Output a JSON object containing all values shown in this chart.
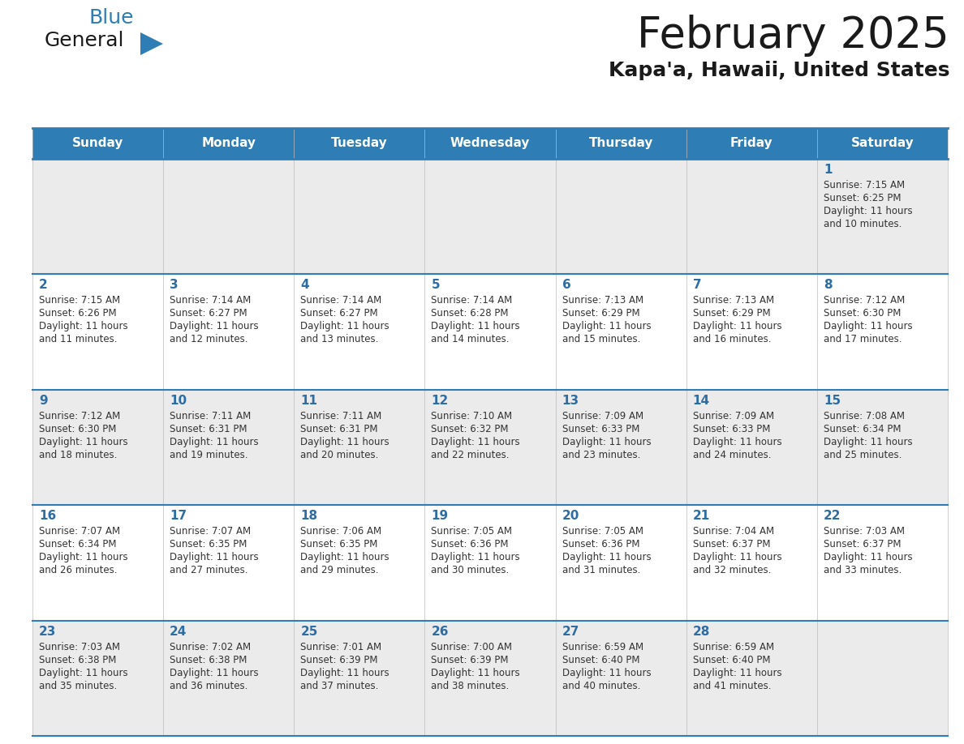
{
  "title": "February 2025",
  "subtitle": "Kapa'a, Hawaii, United States",
  "header_bg": "#2E7DB5",
  "header_text": "#FFFFFF",
  "cell_bg_light": "#EBEBEB",
  "cell_bg_white": "#FFFFFF",
  "day_text_color": "#2E6DA4",
  "info_text_color": "#333333",
  "border_color": "#2E7DB5",
  "weekdays": [
    "Sunday",
    "Monday",
    "Tuesday",
    "Wednesday",
    "Thursday",
    "Friday",
    "Saturday"
  ],
  "days_data": [
    {
      "day": 1,
      "col": 6,
      "row": 0,
      "sunrise": "7:15 AM",
      "sunset": "6:25 PM",
      "daylight_h": "11 hours",
      "daylight_m": "10 minutes"
    },
    {
      "day": 2,
      "col": 0,
      "row": 1,
      "sunrise": "7:15 AM",
      "sunset": "6:26 PM",
      "daylight_h": "11 hours",
      "daylight_m": "11 minutes"
    },
    {
      "day": 3,
      "col": 1,
      "row": 1,
      "sunrise": "7:14 AM",
      "sunset": "6:27 PM",
      "daylight_h": "11 hours",
      "daylight_m": "12 minutes"
    },
    {
      "day": 4,
      "col": 2,
      "row": 1,
      "sunrise": "7:14 AM",
      "sunset": "6:27 PM",
      "daylight_h": "11 hours",
      "daylight_m": "13 minutes"
    },
    {
      "day": 5,
      "col": 3,
      "row": 1,
      "sunrise": "7:14 AM",
      "sunset": "6:28 PM",
      "daylight_h": "11 hours",
      "daylight_m": "14 minutes"
    },
    {
      "day": 6,
      "col": 4,
      "row": 1,
      "sunrise": "7:13 AM",
      "sunset": "6:29 PM",
      "daylight_h": "11 hours",
      "daylight_m": "15 minutes"
    },
    {
      "day": 7,
      "col": 5,
      "row": 1,
      "sunrise": "7:13 AM",
      "sunset": "6:29 PM",
      "daylight_h": "11 hours",
      "daylight_m": "16 minutes"
    },
    {
      "day": 8,
      "col": 6,
      "row": 1,
      "sunrise": "7:12 AM",
      "sunset": "6:30 PM",
      "daylight_h": "11 hours",
      "daylight_m": "17 minutes"
    },
    {
      "day": 9,
      "col": 0,
      "row": 2,
      "sunrise": "7:12 AM",
      "sunset": "6:30 PM",
      "daylight_h": "11 hours",
      "daylight_m": "18 minutes"
    },
    {
      "day": 10,
      "col": 1,
      "row": 2,
      "sunrise": "7:11 AM",
      "sunset": "6:31 PM",
      "daylight_h": "11 hours",
      "daylight_m": "19 minutes"
    },
    {
      "day": 11,
      "col": 2,
      "row": 2,
      "sunrise": "7:11 AM",
      "sunset": "6:31 PM",
      "daylight_h": "11 hours",
      "daylight_m": "20 minutes"
    },
    {
      "day": 12,
      "col": 3,
      "row": 2,
      "sunrise": "7:10 AM",
      "sunset": "6:32 PM",
      "daylight_h": "11 hours",
      "daylight_m": "22 minutes"
    },
    {
      "day": 13,
      "col": 4,
      "row": 2,
      "sunrise": "7:09 AM",
      "sunset": "6:33 PM",
      "daylight_h": "11 hours",
      "daylight_m": "23 minutes"
    },
    {
      "day": 14,
      "col": 5,
      "row": 2,
      "sunrise": "7:09 AM",
      "sunset": "6:33 PM",
      "daylight_h": "11 hours",
      "daylight_m": "24 minutes"
    },
    {
      "day": 15,
      "col": 6,
      "row": 2,
      "sunrise": "7:08 AM",
      "sunset": "6:34 PM",
      "daylight_h": "11 hours",
      "daylight_m": "25 minutes"
    },
    {
      "day": 16,
      "col": 0,
      "row": 3,
      "sunrise": "7:07 AM",
      "sunset": "6:34 PM",
      "daylight_h": "11 hours",
      "daylight_m": "26 minutes"
    },
    {
      "day": 17,
      "col": 1,
      "row": 3,
      "sunrise": "7:07 AM",
      "sunset": "6:35 PM",
      "daylight_h": "11 hours",
      "daylight_m": "27 minutes"
    },
    {
      "day": 18,
      "col": 2,
      "row": 3,
      "sunrise": "7:06 AM",
      "sunset": "6:35 PM",
      "daylight_h": "11 hours",
      "daylight_m": "29 minutes"
    },
    {
      "day": 19,
      "col": 3,
      "row": 3,
      "sunrise": "7:05 AM",
      "sunset": "6:36 PM",
      "daylight_h": "11 hours",
      "daylight_m": "30 minutes"
    },
    {
      "day": 20,
      "col": 4,
      "row": 3,
      "sunrise": "7:05 AM",
      "sunset": "6:36 PM",
      "daylight_h": "11 hours",
      "daylight_m": "31 minutes"
    },
    {
      "day": 21,
      "col": 5,
      "row": 3,
      "sunrise": "7:04 AM",
      "sunset": "6:37 PM",
      "daylight_h": "11 hours",
      "daylight_m": "32 minutes"
    },
    {
      "day": 22,
      "col": 6,
      "row": 3,
      "sunrise": "7:03 AM",
      "sunset": "6:37 PM",
      "daylight_h": "11 hours",
      "daylight_m": "33 minutes"
    },
    {
      "day": 23,
      "col": 0,
      "row": 4,
      "sunrise": "7:03 AM",
      "sunset": "6:38 PM",
      "daylight_h": "11 hours",
      "daylight_m": "35 minutes"
    },
    {
      "day": 24,
      "col": 1,
      "row": 4,
      "sunrise": "7:02 AM",
      "sunset": "6:38 PM",
      "daylight_h": "11 hours",
      "daylight_m": "36 minutes"
    },
    {
      "day": 25,
      "col": 2,
      "row": 4,
      "sunrise": "7:01 AM",
      "sunset": "6:39 PM",
      "daylight_h": "11 hours",
      "daylight_m": "37 minutes"
    },
    {
      "day": 26,
      "col": 3,
      "row": 4,
      "sunrise": "7:00 AM",
      "sunset": "6:39 PM",
      "daylight_h": "11 hours",
      "daylight_m": "38 minutes"
    },
    {
      "day": 27,
      "col": 4,
      "row": 4,
      "sunrise": "6:59 AM",
      "sunset": "6:40 PM",
      "daylight_h": "11 hours",
      "daylight_m": "40 minutes"
    },
    {
      "day": 28,
      "col": 5,
      "row": 4,
      "sunrise": "6:59 AM",
      "sunset": "6:40 PM",
      "daylight_h": "11 hours",
      "daylight_m": "41 minutes"
    }
  ],
  "logo_general_color": "#1A1A1A",
  "logo_blue_color": "#2E7DB5",
  "logo_triangle_color": "#2E7DB5",
  "fig_width": 11.88,
  "fig_height": 9.18,
  "dpi": 100
}
